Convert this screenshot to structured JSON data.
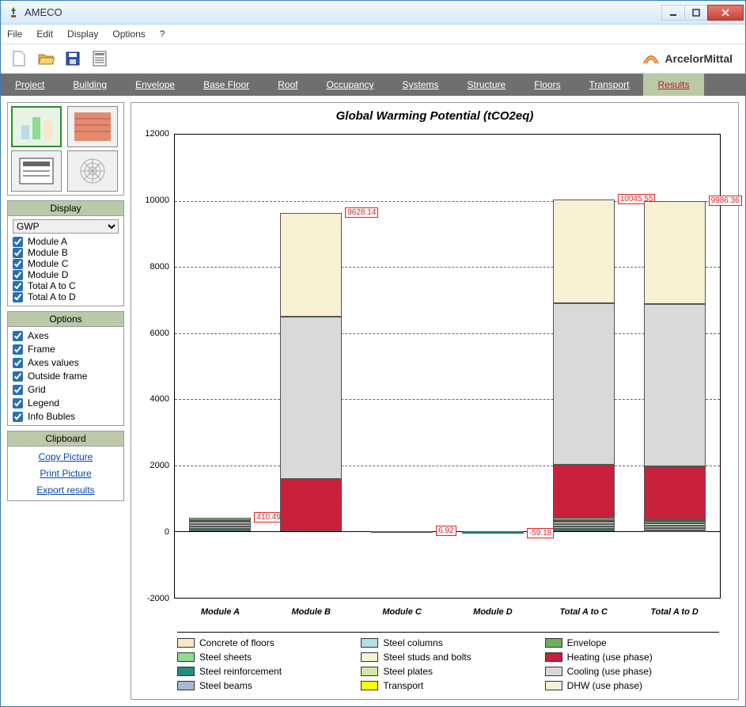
{
  "window": {
    "title": "AMECO"
  },
  "menu": {
    "items": [
      "File",
      "Edit",
      "Display",
      "Options",
      "?"
    ]
  },
  "brand": "ArcelorMittal",
  "navtabs": [
    "Project",
    "Building",
    "Envelope",
    "Base Floor",
    "Roof",
    "Occupancy",
    "Systems",
    "Structure",
    "Floors",
    "Transport",
    "Results"
  ],
  "navtab_active": "Results",
  "sidepanels": {
    "display_header": "Display",
    "gwp_select": "GWP",
    "display_checks": [
      "Module A",
      "Module B",
      "Module C",
      "Module D",
      "Total A to C",
      "Total A to D"
    ],
    "options_header": "Options",
    "options_checks": [
      "Axes",
      "Frame",
      "Axes values",
      "Outside frame",
      "Grid",
      "Legend",
      "Info Bubles"
    ],
    "clipboard_header": "Clipboard",
    "clipboard_links": [
      "Copy Picture",
      "Print Picture",
      "Export results"
    ]
  },
  "chart": {
    "title": "Global Warming Potential (tCO2eq)",
    "type": "stacked-bar",
    "ylim": [
      -2000,
      12000
    ],
    "yticks": [
      -2000,
      0,
      2000,
      4000,
      6000,
      8000,
      10000,
      12000
    ],
    "grid_color": "#666666",
    "background_color": "#ffffff",
    "categories": [
      "Module A",
      "Module B",
      "Module C",
      "Module D",
      "Total A to C",
      "Total A to D"
    ],
    "value_labels": [
      "410.49",
      "9628.14",
      "6.92",
      "-59.18",
      "10045.55",
      "9986.36"
    ],
    "series_colors": {
      "concrete_of_floors": "#f9e7c8",
      "steel_sheets": "#8edc8e",
      "steel_reinforcement": "#1f8f7d",
      "steel_beams": "#a7b7d4",
      "steel_columns": "#b8dce8",
      "steel_studs_and_bolts": "#f7f3d2",
      "steel_plates": "#d6e3a2",
      "transport": "#ffff00",
      "envelope": "#6fae5c",
      "heating_use_phase": "#c9213b",
      "cooling_use_phase": "#d9d9d9",
      "dhw_use_phase": "#f9efd2"
    },
    "bars": [
      {
        "cat": "Module A",
        "total": 410.49,
        "segments": [
          {
            "k": "steel_reinforcement",
            "v": 80
          },
          {
            "k": "steel_beams",
            "v": 70
          },
          {
            "k": "steel_columns",
            "v": 70
          },
          {
            "k": "concrete_of_floors",
            "v": 70
          },
          {
            "k": "envelope",
            "v": 60
          },
          {
            "k": "steel_sheets",
            "v": 60
          }
        ]
      },
      {
        "cat": "Module B",
        "total": 9628.14,
        "segments": [
          {
            "k": "heating_use_phase",
            "v": 1600
          },
          {
            "k": "cooling_use_phase",
            "v": 4900
          },
          {
            "k": "dhw_use_phase",
            "v": 3128
          }
        ]
      },
      {
        "cat": "Module C",
        "total": 6.92,
        "segments": [
          {
            "k": "transport",
            "v": 6.92
          }
        ]
      },
      {
        "cat": "Module D",
        "total": -59.18,
        "segments": [
          {
            "k": "steel_reinforcement",
            "v": -59.18
          }
        ]
      },
      {
        "cat": "Total A to C",
        "total": 10045.55,
        "segments": [
          {
            "k": "steel_reinforcement",
            "v": 80
          },
          {
            "k": "steel_beams",
            "v": 70
          },
          {
            "k": "steel_columns",
            "v": 70
          },
          {
            "k": "concrete_of_floors",
            "v": 70
          },
          {
            "k": "envelope",
            "v": 60
          },
          {
            "k": "steel_sheets",
            "v": 60
          },
          {
            "k": "heating_use_phase",
            "v": 1600
          },
          {
            "k": "cooling_use_phase",
            "v": 4900
          },
          {
            "k": "dhw_use_phase",
            "v": 3135
          }
        ]
      },
      {
        "cat": "Total A to D",
        "total": 9986.36,
        "segments": [
          {
            "k": "steel_reinforcement",
            "v": 40
          },
          {
            "k": "steel_beams",
            "v": 70
          },
          {
            "k": "steel_columns",
            "v": 70
          },
          {
            "k": "concrete_of_floors",
            "v": 70
          },
          {
            "k": "envelope",
            "v": 60
          },
          {
            "k": "steel_sheets",
            "v": 60
          },
          {
            "k": "heating_use_phase",
            "v": 1600
          },
          {
            "k": "cooling_use_phase",
            "v": 4900
          },
          {
            "k": "dhw_use_phase",
            "v": 3116
          }
        ]
      }
    ],
    "legend": [
      {
        "k": "concrete_of_floors",
        "label": "Concrete of floors"
      },
      {
        "k": "steel_columns",
        "label": "Steel columns"
      },
      {
        "k": "envelope",
        "label": "Envelope"
      },
      {
        "k": "steel_sheets",
        "label": "Steel sheets"
      },
      {
        "k": "steel_studs_and_bolts",
        "label": "Steel studs and bolts"
      },
      {
        "k": "heating_use_phase",
        "label": "Heating (use phase)"
      },
      {
        "k": "steel_reinforcement",
        "label": "Steel reinforcement"
      },
      {
        "k": "steel_plates",
        "label": "Steel plates"
      },
      {
        "k": "cooling_use_phase",
        "label": "Cooling (use phase)"
      },
      {
        "k": "steel_beams",
        "label": "Steel beams"
      },
      {
        "k": "transport",
        "label": "Transport"
      },
      {
        "k": "dhw_use_phase",
        "label": "DHW (use phase)"
      }
    ]
  }
}
